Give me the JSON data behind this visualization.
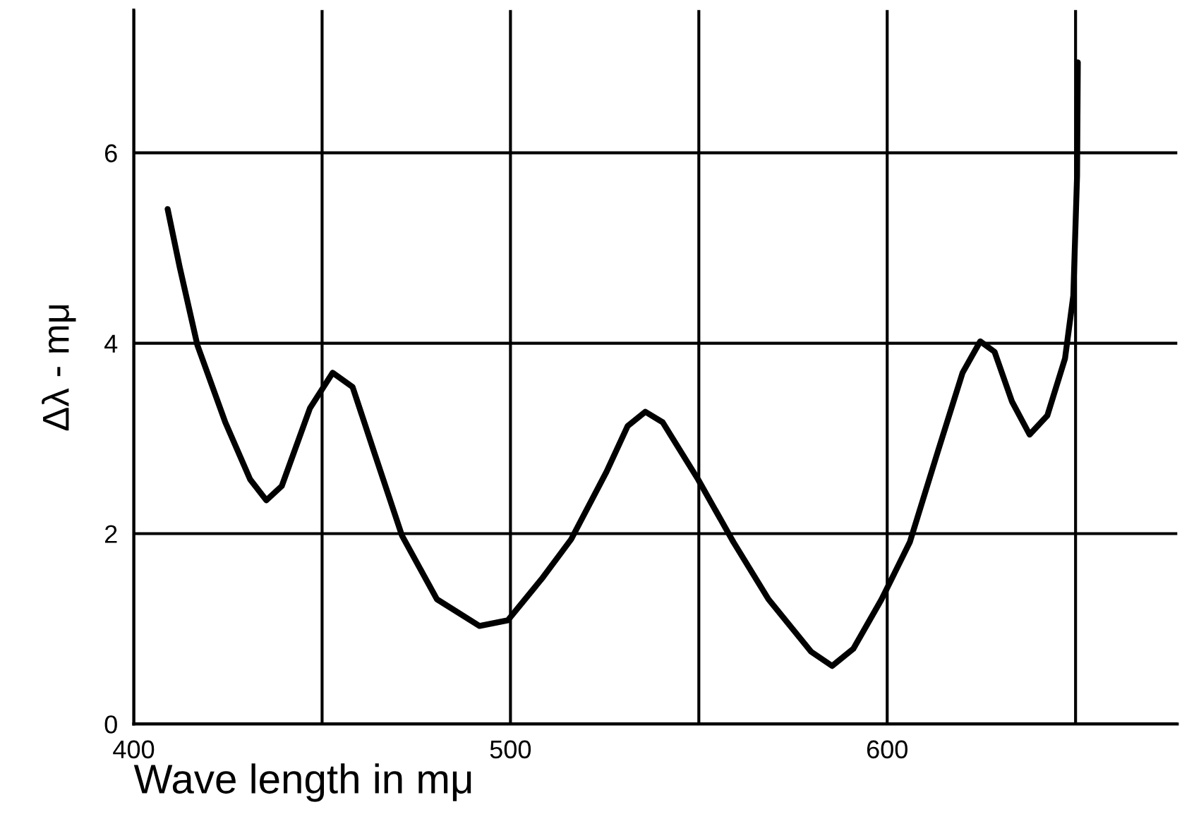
{
  "chart_data": {
    "type": "line",
    "xlabel": "Wave length in mμ",
    "ylabel": "Δλ - mμ",
    "series": [
      {
        "color": "#000000",
        "x": [
          409.0,
          412.2,
          416.9,
          424.3,
          430.9,
          435.2,
          439.3,
          446.8,
          452.8,
          458.1,
          463.7,
          471.2,
          480.5,
          491.8,
          499.3,
          508.6,
          516.1,
          525.5,
          531.1,
          535.8,
          540.4,
          549.8,
          559.2,
          568.5,
          579.8,
          585.4,
          591.0,
          598.5,
          606.0,
          613.5,
          620.0,
          624.7,
          628.5,
          633.1,
          637.8,
          642.5,
          647.2,
          649.4,
          650.4,
          650.6
        ],
        "values": [
          5.41,
          4.8,
          3.98,
          3.17,
          2.57,
          2.35,
          2.5,
          3.32,
          3.69,
          3.54,
          2.87,
          1.98,
          1.31,
          1.03,
          1.09,
          1.54,
          1.94,
          2.65,
          3.13,
          3.28,
          3.17,
          2.57,
          1.91,
          1.31,
          0.76,
          0.61,
          0.79,
          1.31,
          1.91,
          2.87,
          3.69,
          4.02,
          3.91,
          3.39,
          3.04,
          3.24,
          3.84,
          4.5,
          5.76,
          6.95
        ]
      }
    ],
    "xlim": [
      400,
      677
    ],
    "ylim": [
      0,
      7.5
    ],
    "xticks": [
      400,
      {
        "value": 450,
        "label": null
      },
      500,
      {
        "value": 550,
        "label": null
      },
      600,
      {
        "value": 650,
        "label": null
      }
    ],
    "yticks": [
      0,
      2,
      4,
      6
    ],
    "grid": true,
    "legend": false,
    "marker": "none",
    "line_style": "solid"
  }
}
